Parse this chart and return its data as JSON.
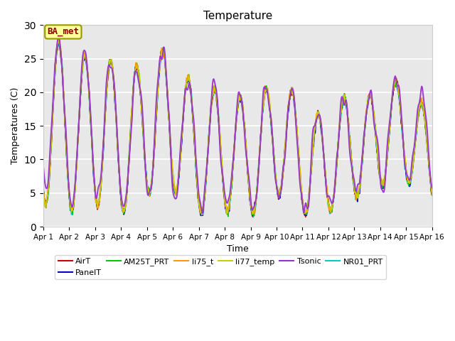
{
  "title": "Temperature",
  "ylabel": "Temperatures (C)",
  "xlabel": "Time",
  "annotation": "BA_met",
  "ylim": [
    0,
    30
  ],
  "background_color": "#e8e8e8",
  "series_names": [
    "AirT",
    "PanelT",
    "AM25T_PRT",
    "li75_t",
    "li77_temp",
    "Tsonic",
    "NR01_PRT"
  ],
  "series_colors": [
    "#cc0000",
    "#0000cc",
    "#00cc00",
    "#ff9900",
    "#cccc00",
    "#9933cc",
    "#00cccc"
  ],
  "series_widths": [
    1.2,
    1.2,
    1.2,
    1.2,
    1.2,
    1.4,
    1.4
  ],
  "x_tick_labels": [
    "Apr 1",
    "Apr 2",
    "Apr 3",
    "Apr 4",
    "Apr 5",
    "Apr 6",
    "Apr 7",
    "Apr 8",
    "Apr 9",
    "Apr 10",
    "Apr 11",
    "Apr 12",
    "Apr 13",
    "Apr 14",
    "Apr 15",
    "Apr 16"
  ],
  "num_points": 720,
  "seed": 12345
}
